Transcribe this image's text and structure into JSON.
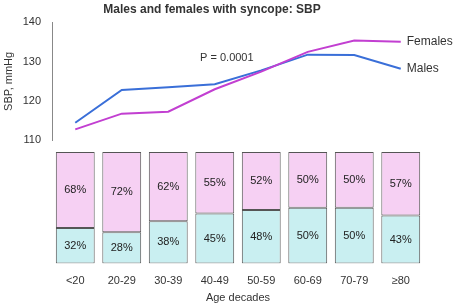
{
  "chart_data": [
    {
      "type": "line",
      "title": "Males and females with syncope: SBP",
      "y_label": "SBP, mmHg",
      "annotation": "P = 0.0001",
      "categories": [
        "<20",
        "20-29",
        "30-39",
        "40-49",
        "50-59",
        "60-69",
        "70-79",
        "≥80"
      ],
      "series": [
        {
          "name": "Females",
          "color": "#c23fd1",
          "values": [
            112.8,
            116.8,
            117.3,
            123.0,
            127.5,
            132.5,
            135.4,
            135.1
          ]
        },
        {
          "name": "Males",
          "color": "#3a6fd8",
          "values": [
            114.5,
            122.8,
            123.5,
            124.3,
            127.8,
            131.8,
            131.7,
            128.2
          ]
        }
      ],
      "ylim": [
        110,
        140
      ],
      "yticks": [
        110,
        120,
        130,
        140
      ],
      "grid": false
    },
    {
      "type": "bar",
      "x_label": "Age decades",
      "categories": [
        "<20",
        "20-29",
        "30-39",
        "40-49",
        "50-59",
        "60-69",
        "70-79",
        "≥80"
      ],
      "stacked": true,
      "data_labels": true,
      "tick_labels": "x",
      "ylim": [
        0,
        100
      ],
      "series": [
        {
          "color": "#c9eff1",
          "values": [
            32,
            28,
            38,
            45,
            48,
            50,
            50,
            43
          ],
          "value_labels": [
            "32%",
            "28%",
            "38%",
            "45%",
            "48%",
            "50%",
            "50%",
            "43%"
          ]
        },
        {
          "color": "#f6d0f3",
          "values": [
            68,
            72,
            62,
            55,
            52,
            50,
            50,
            57
          ],
          "value_labels": [
            "68%",
            "72%",
            "62%",
            "55%",
            "52%",
            "50%",
            "50%",
            "57%"
          ]
        }
      ]
    }
  ]
}
